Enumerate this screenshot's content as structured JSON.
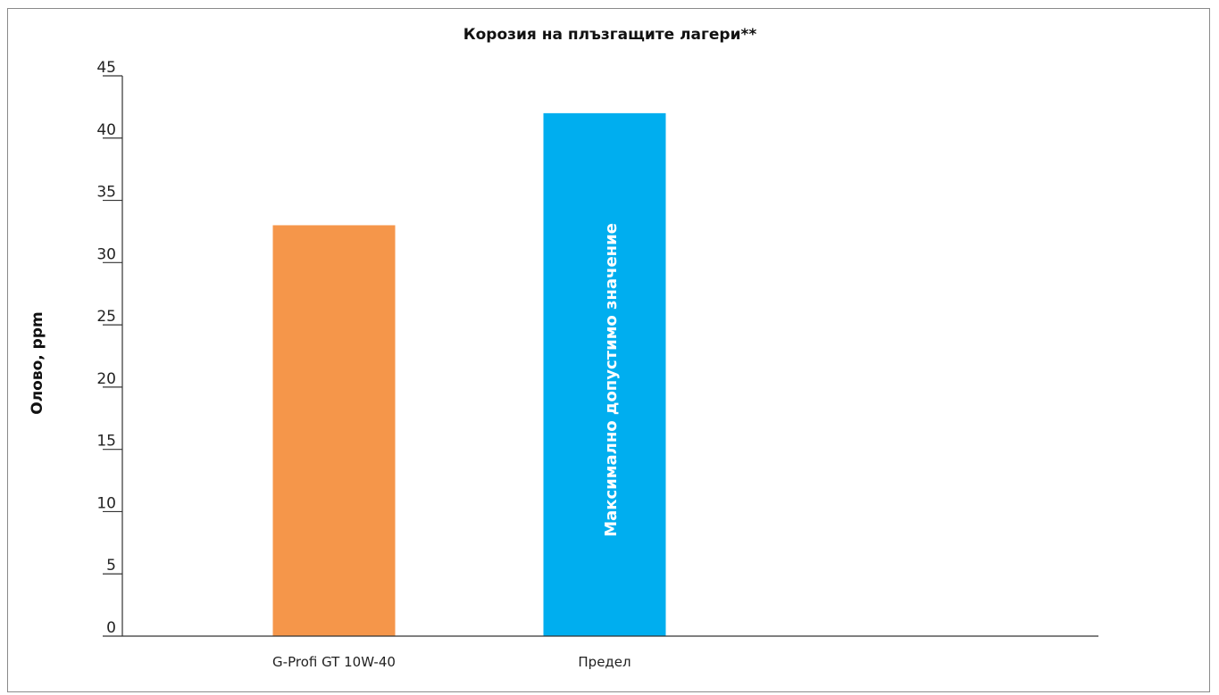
{
  "chart_data": {
    "type": "bar",
    "title": "Корозия на плъзгащите лагери**",
    "xlabel": "",
    "ylabel": "Олово, ppm",
    "ylim": [
      0,
      45
    ],
    "yticks": [
      "0",
      "5",
      "10",
      "15",
      "20",
      "25",
      "30",
      "35",
      "40",
      "45"
    ],
    "grid": false,
    "categories": [
      "G-Profi GT 10W-40",
      "Предел"
    ],
    "values": [
      33,
      42
    ],
    "colors": [
      "#f5964a",
      "#00aeef"
    ],
    "bar_labels": [
      "",
      "Максимално допустимо значение"
    ]
  }
}
